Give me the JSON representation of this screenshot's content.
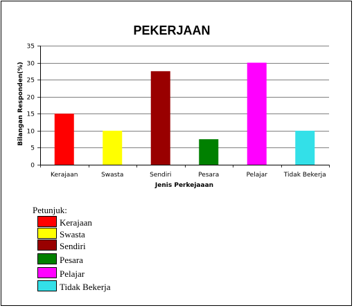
{
  "chart_data": {
    "type": "bar",
    "title": "PEKERJAAN",
    "xlabel": "Jenis Perkejaaan",
    "ylabel": "Bilangan Responden(%)",
    "categories": [
      "Kerajaan",
      "Swasta",
      "Sendiri",
      "Pesara",
      "Pelajar",
      "Tidak Bekerja"
    ],
    "values": [
      15,
      10,
      27.5,
      7.5,
      30,
      10
    ],
    "colors": [
      "#ff0000",
      "#ffff00",
      "#990000",
      "#008000",
      "#ff00ff",
      "#33e0e8"
    ],
    "ylim": [
      0,
      35
    ],
    "yticks": [
      "0",
      "5",
      "10",
      "15",
      "20",
      "25",
      "30",
      "35"
    ],
    "grid": true,
    "legend": false
  },
  "legend_box": {
    "title": "Petunjuk:",
    "items": [
      {
        "label": "Kerajaan",
        "color": "#ff0000"
      },
      {
        "label": "Swasta",
        "color": "#ffff00"
      },
      {
        "label": "Sendiri",
        "color": "#990000"
      },
      {
        "label": "Pesara",
        "color": "#008000"
      },
      {
        "label": "Pelajar",
        "color": "#ff00ff"
      },
      {
        "label": "Tidak Bekerja",
        "color": "#33e0e8"
      }
    ]
  }
}
